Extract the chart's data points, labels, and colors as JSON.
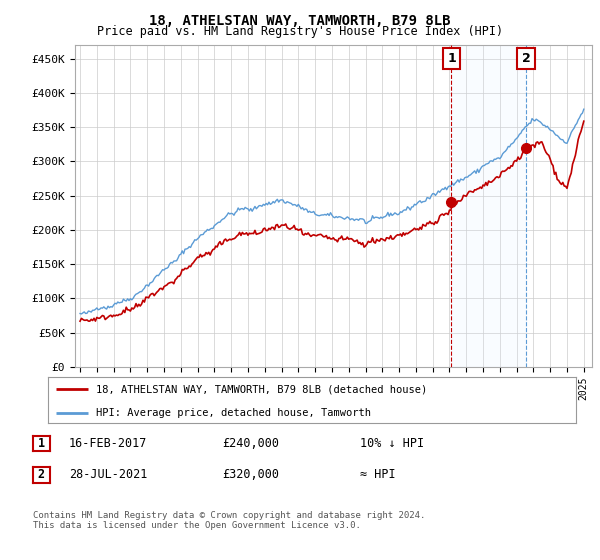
{
  "title": "18, ATHELSTAN WAY, TAMWORTH, B79 8LB",
  "subtitle": "Price paid vs. HM Land Registry's House Price Index (HPI)",
  "ylabel_ticks": [
    "£0",
    "£50K",
    "£100K",
    "£150K",
    "£200K",
    "£250K",
    "£300K",
    "£350K",
    "£400K",
    "£450K"
  ],
  "ylabel_values": [
    0,
    50000,
    100000,
    150000,
    200000,
    250000,
    300000,
    350000,
    400000,
    450000
  ],
  "ylim": [
    0,
    470000
  ],
  "xlim_start": 1994.7,
  "xlim_end": 2025.5,
  "ann1_x": 2017.12,
  "ann1_y": 240000,
  "ann2_x": 2021.57,
  "ann2_y": 320000,
  "legend_line1": "18, ATHELSTAN WAY, TAMWORTH, B79 8LB (detached house)",
  "legend_line2": "HPI: Average price, detached house, Tamworth",
  "footnote": "Contains HM Land Registry data © Crown copyright and database right 2024.\nThis data is licensed under the Open Government Licence v3.0.",
  "table_rows": [
    {
      "num": "1",
      "date": "16-FEB-2017",
      "price": "£240,000",
      "note": "10% ↓ HPI"
    },
    {
      "num": "2",
      "date": "28-JUL-2021",
      "price": "£320,000",
      "note": "≈ HPI"
    }
  ],
  "hpi_color": "#5b9bd5",
  "price_color": "#c00000",
  "vline1_color": "#c00000",
  "vline2_color": "#5b9bd5",
  "shade_color": "#ddeeff",
  "grid_color": "#cccccc",
  "background_color": "#ffffff",
  "plot_bg_color": "#ffffff",
  "ann_box_color": "#c00000"
}
